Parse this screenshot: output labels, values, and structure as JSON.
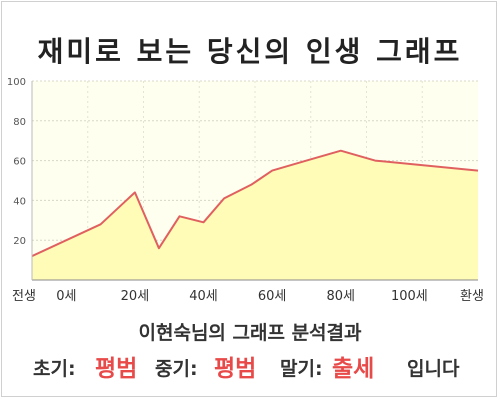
{
  "title": "재미로 보는 당신의 인생 그래프",
  "subtitle": "이현숙님의 그래프 분석결과",
  "result": {
    "early_label": "초기:",
    "early_value": "평범",
    "mid_label": "중기:",
    "mid_value": "평범",
    "late_label": "말기:",
    "late_value": "출세",
    "suffix": "입니다"
  },
  "colors": {
    "line": "#e06060",
    "fill": "#fffcb8",
    "accent_text": "#e84a4a",
    "plot_background": "#fffff0"
  },
  "chart_data": {
    "type": "area",
    "title": "재미로 보는 당신의 인생 그래프",
    "xlabel": "",
    "ylabel": "",
    "x_ticks": [
      "전생",
      "0세",
      "20세",
      "40세",
      "60세",
      "80세",
      "100세",
      "환생"
    ],
    "y_ticks": [
      "20",
      "40",
      "60",
      "80",
      "100"
    ],
    "ylim": [
      0,
      100
    ],
    "grid": true,
    "series": [
      {
        "points": [
          {
            "x": "전생",
            "y": 12
          },
          {
            "x": "10세",
            "y": 28
          },
          {
            "x": "20세",
            "y": 44
          },
          {
            "x": "27세",
            "y": 16
          },
          {
            "x": "33세",
            "y": 32
          },
          {
            "x": "40세",
            "y": 29
          },
          {
            "x": "46세",
            "y": 41
          },
          {
            "x": "54세",
            "y": 48
          },
          {
            "x": "60세",
            "y": 55
          },
          {
            "x": "70세",
            "y": 60
          },
          {
            "x": "80세",
            "y": 65
          },
          {
            "x": "90세",
            "y": 60
          },
          {
            "x": "환생",
            "y": 55
          }
        ]
      }
    ]
  }
}
